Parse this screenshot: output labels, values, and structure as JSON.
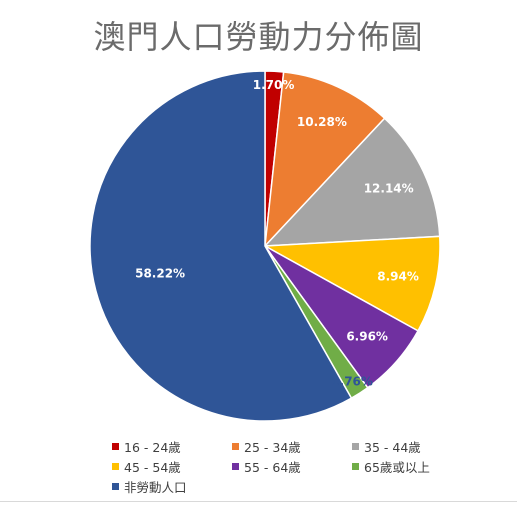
{
  "chart_data": {
    "type": "pie",
    "title": "澳門人口勞動力分佈圖",
    "start_angle_deg": 0,
    "direction": "clockwise",
    "legend_position": "bottom",
    "slices": [
      {
        "name": "16 - 24歲",
        "value": 1.7,
        "label": "1.70%",
        "color": "#c00000",
        "label_color": "#ffffff"
      },
      {
        "name": "25 - 34歲",
        "value": 10.28,
        "label": "10.28%",
        "color": "#ed7d31",
        "label_color": "#ffffff"
      },
      {
        "name": "35 - 44歲",
        "value": 12.14,
        "label": "12.14%",
        "color": "#a5a5a5",
        "label_color": "#ffffff"
      },
      {
        "name": "45 - 54歲",
        "value": 8.94,
        "label": "8.94%",
        "color": "#ffc000",
        "label_color": "#ffffff"
      },
      {
        "name": "55 - 64歲",
        "value": 6.96,
        "label": "6.96%",
        "color": "#7030a0",
        "label_color": "#ffffff"
      },
      {
        "name": "65歲或以上",
        "value": 1.76,
        "label": "1.76%",
        "color": "#70ad47",
        "label_color": "#2f5597"
      },
      {
        "name": "非勞動人口",
        "value": 58.22,
        "label": "58.22%",
        "color": "#2f5597",
        "label_color": "#ffffff"
      }
    ]
  }
}
